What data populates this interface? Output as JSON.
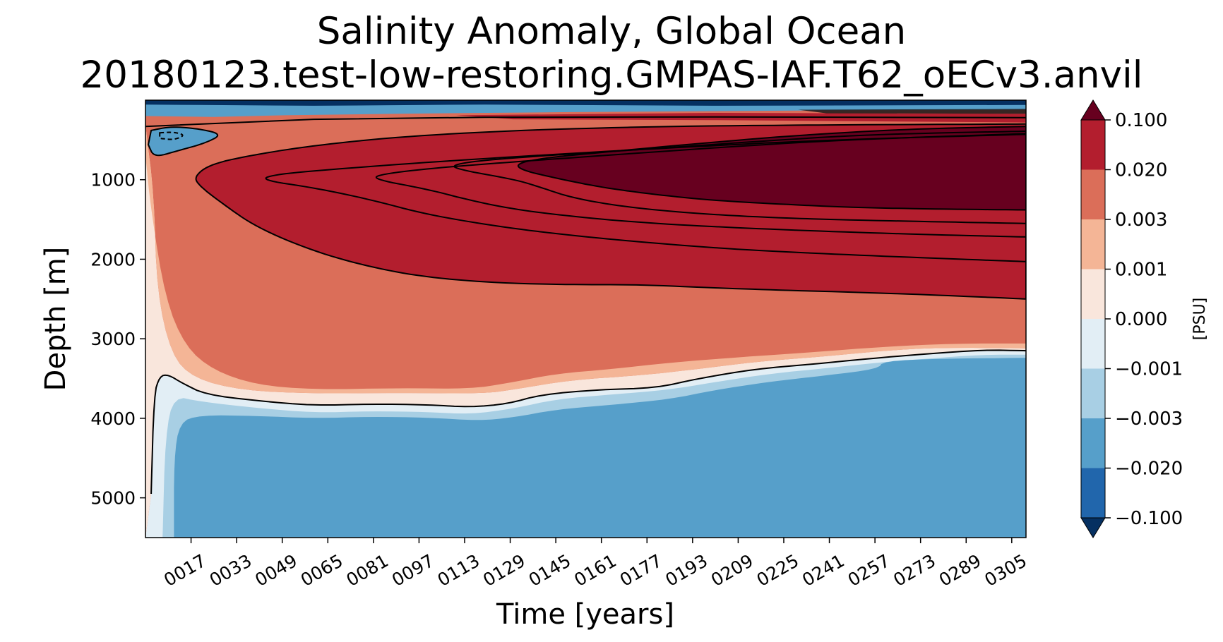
{
  "chart_data": {
    "type": "heatmap",
    "title": "Salinity Anomaly, Global Ocean",
    "subtitle": "20180123.test-low-restoring.GMPAS-IAF.T62_oECv3.anvil",
    "xlabel": "Time [years]",
    "ylabel": "Depth [m]",
    "x_ticks": [
      "0017",
      "0033",
      "0049",
      "0065",
      "0081",
      "0097",
      "0113",
      "0129",
      "0145",
      "0161",
      "0177",
      "0193",
      "0209",
      "0225",
      "0241",
      "0257",
      "0273",
      "0289",
      "0305"
    ],
    "x_tick_values": [
      17,
      33,
      49,
      65,
      81,
      97,
      113,
      129,
      145,
      161,
      177,
      193,
      209,
      225,
      241,
      257,
      273,
      289,
      305
    ],
    "xlim": [
      1,
      310
    ],
    "y_ticks": [
      "1000",
      "2000",
      "3000",
      "4000",
      "5000"
    ],
    "y_tick_values": [
      1000,
      2000,
      3000,
      4000,
      5000
    ],
    "ylim": [
      5500,
      0
    ],
    "y_inverted": true,
    "colorbar": {
      "label": "[PSU]",
      "levels": [
        -0.1,
        -0.02,
        -0.003,
        -0.001,
        0.0,
        0.001,
        0.003,
        0.02,
        0.1
      ],
      "tick_labels": [
        "−0.100",
        "−0.020",
        "−0.003",
        "−0.001",
        "0.000",
        "0.001",
        "0.003",
        "0.020",
        "0.100"
      ],
      "colors": [
        "#2166ac",
        "#569fca",
        "#a8cfe4",
        "#e2eef5",
        "#f9e6dc",
        "#f4b596",
        "#db6e59",
        "#b31e2e"
      ],
      "extend_under_color": "#053061",
      "extend_over_color": "#67001f"
    },
    "regions": [
      {
        "level": "0.003 to 0.020",
        "x": [
          1,
          310
        ],
        "depth_range": [
          300,
          3100
        ],
        "note": "broad band"
      },
      {
        "level": "0.020 to 0.100",
        "x": [
          18,
          310
        ],
        "depth_range": [
          250,
          2500
        ]
      },
      {
        "level": "above 0.100",
        "x": [
          130,
          310
        ],
        "depth_range": [
          300,
          1380
        ]
      },
      {
        "level": "-0.020 to -0.003",
        "x": [
          10,
          310
        ],
        "depth_range": [
          3300,
          5500
        ]
      },
      {
        "level": "-0.020 to -0.003",
        "x": [
          3,
          28
        ],
        "depth_range": [
          350,
          750
        ],
        "note": "subsurface pocket"
      }
    ],
    "contour_depths_at_x310": [
      1380,
      1550,
      1720,
      2030,
      2500,
      3150
    ],
    "grid": false
  }
}
